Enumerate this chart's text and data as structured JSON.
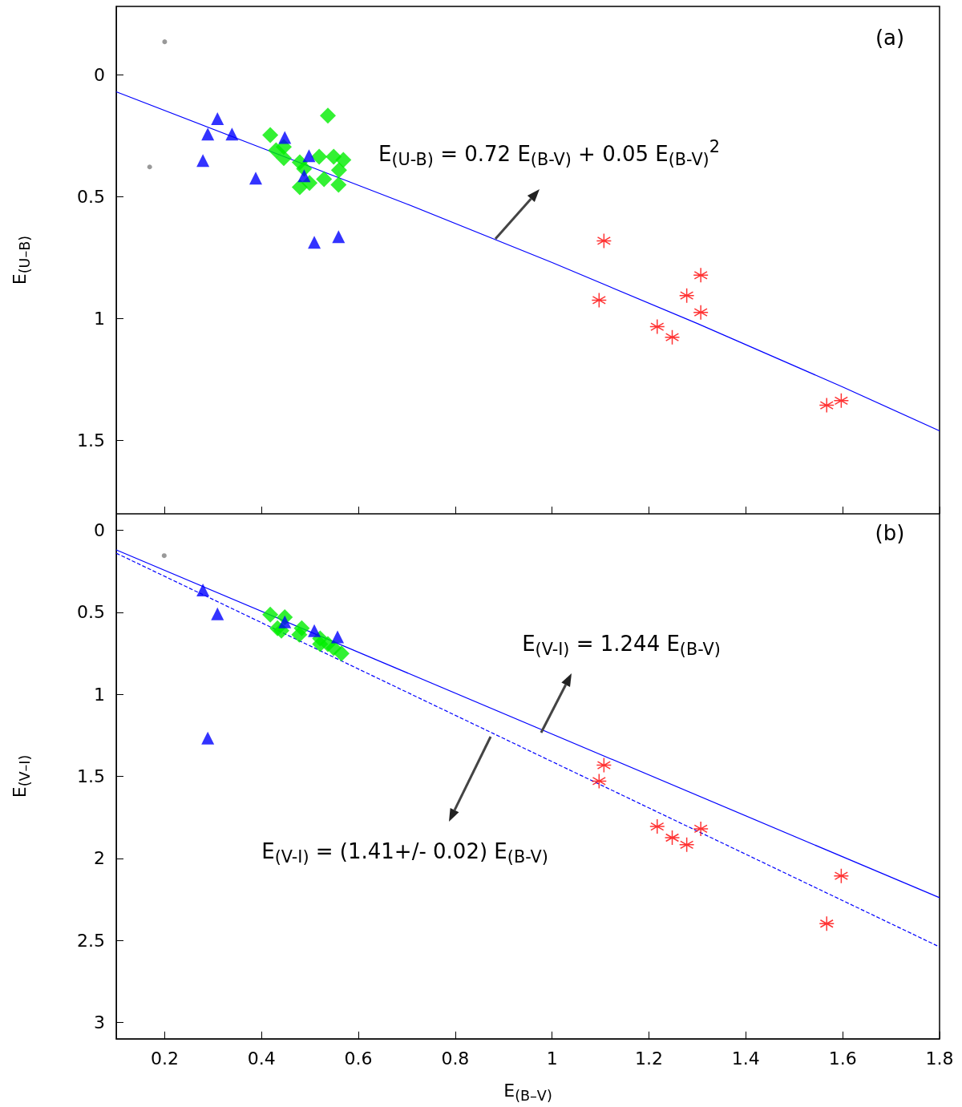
{
  "chart_data": [
    {
      "type": "scatter",
      "ylabel": "E$_{(U–B)}$",
      "xlim": [
        0.1,
        1.8
      ],
      "xticks": [
        0.2,
        0.4,
        0.6,
        0.8,
        1,
        1.2,
        1.4,
        1.6,
        1.8
      ],
      "ylim": [
        1.8,
        -0.28
      ],
      "yticks": [
        0,
        0.5,
        1,
        1.5
      ],
      "tick_labels": "y",
      "grid": false,
      "series": [
        {
          "color": "#808080",
          "marker": "circle",
          "x": [
            0.2,
            0.169
          ],
          "values": [
            -0.135,
            0.378
          ]
        },
        {
          "color": "#00ee00",
          "marker": "diamond",
          "x": [
            0.537,
            0.418,
            0.43,
            0.446,
            0.446,
            0.479,
            0.488,
            0.519,
            0.549,
            0.569,
            0.56,
            0.479,
            0.499,
            0.529,
            0.559
          ],
          "values": [
            0.168,
            0.247,
            0.31,
            0.296,
            0.342,
            0.359,
            0.385,
            0.336,
            0.336,
            0.349,
            0.391,
            0.461,
            0.444,
            0.428,
            0.451
          ]
        },
        {
          "color": "#0000ff",
          "marker": "triangle",
          "x": [
            0.309,
            0.289,
            0.339,
            0.279,
            0.448,
            0.388,
            0.498,
            0.488,
            0.509,
            0.559
          ],
          "values": [
            0.18,
            0.243,
            0.243,
            0.352,
            0.257,
            0.424,
            0.332,
            0.414,
            0.687,
            0.664
          ]
        },
        {
          "color": "#ff0000",
          "marker": "cross",
          "x": [
            1.107,
            1.097,
            1.307,
            1.278,
            1.307,
            1.217,
            1.248,
            1.567,
            1.597
          ],
          "values": [
            0.681,
            0.924,
            0.822,
            0.905,
            0.974,
            1.033,
            1.076,
            1.355,
            1.336
          ]
        },
        {
          "type": "line",
          "color": "#0000ff",
          "line_style": "solid",
          "x": [
            0.1,
            0.4,
            0.7,
            1.0,
            1.3,
            1.6,
            1.8
          ],
          "values": [
            0.07,
            0.3,
            0.53,
            0.77,
            1.02,
            1.28,
            1.46
          ]
        }
      ],
      "annotations": [
        "(a)",
        "E$_{(U-B)}$ = 0.72 E$_{(B-V)}$ + 0.05 E$_{(B-V)}$$^{2}$"
      ]
    },
    {
      "type": "scatter",
      "xlabel": "E$_{(B–V)}$",
      "ylabel": "E$_{(V–I)}$",
      "xlim": [
        0.1,
        1.8
      ],
      "xticks": [
        0.2,
        0.4,
        0.6,
        0.8,
        1,
        1.2,
        1.4,
        1.6,
        1.8
      ],
      "ylim": [
        3.1,
        -0.1
      ],
      "yticks": [
        0,
        0.5,
        1,
        1.5,
        2,
        2.5,
        3
      ],
      "grid": false,
      "series": [
        {
          "color": "#808080",
          "marker": "circle",
          "x": [
            0.199
          ],
          "values": [
            0.155
          ]
        },
        {
          "color": "#00ee00",
          "marker": "diamond",
          "x": [
            0.418,
            0.448,
            0.433,
            0.483,
            0.478,
            0.521,
            0.537,
            0.565,
            0.549,
            0.441,
            0.521
          ],
          "values": [
            0.515,
            0.53,
            0.597,
            0.597,
            0.636,
            0.66,
            0.694,
            0.752,
            0.718,
            0.612,
            0.694
          ]
        },
        {
          "color": "#0000ff",
          "marker": "triangle",
          "x": [
            0.279,
            0.309,
            0.289,
            0.448,
            0.509,
            0.557
          ],
          "values": [
            0.364,
            0.51,
            1.267,
            0.558,
            0.612,
            0.65
          ]
        },
        {
          "color": "#ff0000",
          "marker": "cross",
          "x": [
            1.107,
            1.097,
            1.217,
            1.248,
            1.278,
            1.307,
            1.597,
            1.567
          ],
          "values": [
            1.432,
            1.529,
            1.806,
            1.874,
            1.917,
            1.82,
            2.107,
            2.398
          ]
        },
        {
          "type": "line",
          "color": "#0000ff",
          "line_style": "solid",
          "x": [
            0.1,
            1.8
          ],
          "values": [
            0.12,
            2.24
          ]
        },
        {
          "type": "line",
          "color": "#0000ff",
          "line_style": "dashed",
          "x": [
            0.1,
            1.8
          ],
          "values": [
            0.14,
            2.54
          ]
        }
      ],
      "annotations": [
        "(b)",
        "E$_{(V-I)}$ = 1.244 E$_{(B-V)}$",
        "E$_{(V-I)}$ = (1.41+/- 0.02) E$_{(B-V)}$"
      ]
    }
  ]
}
